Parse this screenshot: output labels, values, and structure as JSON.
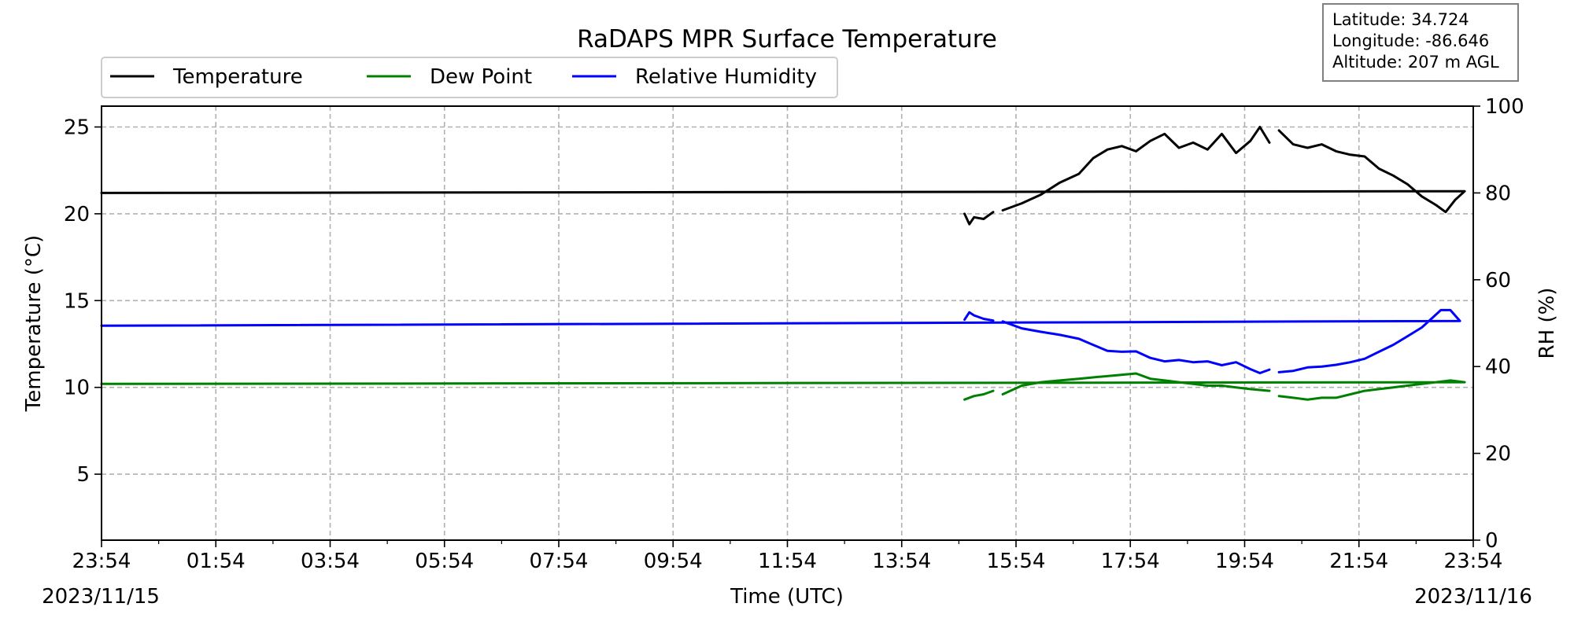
{
  "chart_data": {
    "type": "line",
    "title": "RaDAPS MPR Surface Temperature",
    "xlabel": "Time (UTC)",
    "ylabel_left": "Temperature (°C)",
    "ylabel_right": "RH (%)",
    "x_ticks": [
      "23:54",
      "01:54",
      "03:54",
      "05:54",
      "07:54",
      "09:54",
      "11:54",
      "13:54",
      "15:54",
      "17:54",
      "19:54",
      "21:54",
      "23:54"
    ],
    "start_date": "2023/11/15",
    "end_date": "2023/11/16",
    "y_left_ticks": [
      5,
      10,
      15,
      20,
      25
    ],
    "y_left_range": [
      1.2,
      26.2
    ],
    "y_right_ticks": [
      0,
      20,
      40,
      60,
      80,
      100
    ],
    "y_right_range": [
      0,
      100
    ],
    "grid": true,
    "legend_position": "top-left",
    "info_box": [
      "Latitude: 34.724",
      "Longitude: -86.646",
      "Altitude: 207 m AGL"
    ],
    "series": [
      {
        "name": "Temperature",
        "axis": "left",
        "color": "#000000",
        "segments": [
          [
            [
              "15:00",
              20.0
            ],
            [
              "15:05",
              19.4
            ],
            [
              "15:10",
              19.8
            ],
            [
              "15:20",
              19.7
            ],
            [
              "15:30",
              20.1
            ]
          ],
          [
            [
              "15:40",
              20.2
            ],
            [
              "16:00",
              20.6
            ],
            [
              "16:20",
              21.1
            ],
            [
              "16:40",
              21.8
            ],
            [
              "17:00",
              22.3
            ],
            [
              "17:15",
              23.2
            ],
            [
              "17:30",
              23.7
            ],
            [
              "17:45",
              23.9
            ],
            [
              "18:00",
              23.6
            ],
            [
              "18:15",
              24.2
            ],
            [
              "18:30",
              24.6
            ],
            [
              "18:45",
              23.8
            ],
            [
              "19:00",
              24.1
            ],
            [
              "19:15",
              23.7
            ],
            [
              "19:30",
              24.6
            ],
            [
              "19:45",
              23.5
            ],
            [
              "20:00",
              24.2
            ],
            [
              "20:10",
              25.0
            ],
            [
              "20:20",
              24.1
            ]
          ],
          [
            [
              "20:30",
              24.8
            ],
            [
              "20:45",
              24.0
            ],
            [
              "21:00",
              23.8
            ],
            [
              "21:15",
              24.0
            ],
            [
              "21:30",
              23.6
            ],
            [
              "21:45",
              23.4
            ],
            [
              "22:00",
              23.3
            ],
            [
              "22:15",
              22.6
            ],
            [
              "22:30",
              22.2
            ],
            [
              "22:45",
              21.7
            ],
            [
              "23:00",
              21.0
            ],
            [
              "23:15",
              20.5
            ],
            [
              "23:25",
              20.1
            ],
            [
              "23:35",
              20.8
            ],
            [
              "23:45",
              21.3
            ],
            [
              "23:54",
              21.2
            ]
          ]
        ]
      },
      {
        "name": "Dew Point",
        "axis": "left",
        "color": "#008000",
        "segments": [
          [
            [
              "15:00",
              9.3
            ],
            [
              "15:10",
              9.5
            ],
            [
              "15:20",
              9.6
            ],
            [
              "15:30",
              9.8
            ]
          ],
          [
            [
              "15:40",
              9.6
            ],
            [
              "16:00",
              10.1
            ],
            [
              "16:20",
              10.3
            ],
            [
              "16:40",
              10.4
            ],
            [
              "17:00",
              10.5
            ],
            [
              "17:20",
              10.6
            ],
            [
              "17:40",
              10.7
            ],
            [
              "18:00",
              10.8
            ],
            [
              "18:15",
              10.5
            ],
            [
              "18:30",
              10.4
            ],
            [
              "18:45",
              10.3
            ],
            [
              "19:00",
              10.2
            ],
            [
              "19:15",
              10.1
            ],
            [
              "19:30",
              10.1
            ],
            [
              "19:45",
              10.0
            ],
            [
              "20:00",
              9.9
            ],
            [
              "20:20",
              9.8
            ]
          ],
          [
            [
              "20:30",
              9.5
            ],
            [
              "20:45",
              9.4
            ],
            [
              "21:00",
              9.3
            ],
            [
              "21:15",
              9.4
            ],
            [
              "21:30",
              9.4
            ],
            [
              "21:45",
              9.6
            ],
            [
              "22:00",
              9.8
            ],
            [
              "22:15",
              9.9
            ],
            [
              "22:30",
              10.0
            ],
            [
              "22:45",
              10.1
            ],
            [
              "23:00",
              10.2
            ],
            [
              "23:15",
              10.3
            ],
            [
              "23:30",
              10.4
            ],
            [
              "23:45",
              10.3
            ],
            [
              "23:54",
              10.2
            ]
          ]
        ]
      },
      {
        "name": "Relative Humidity",
        "axis": "right",
        "color": "#0000ff",
        "segments": [
          [
            [
              "15:00",
              50.8
            ],
            [
              "15:05",
              52.5
            ],
            [
              "15:10",
              51.8
            ],
            [
              "15:20",
              51.0
            ],
            [
              "15:30",
              50.6
            ]
          ],
          [
            [
              "15:40",
              50.4
            ],
            [
              "16:00",
              48.8
            ],
            [
              "16:20",
              48.0
            ],
            [
              "16:40",
              47.3
            ],
            [
              "17:00",
              46.4
            ],
            [
              "17:15",
              45.0
            ],
            [
              "17:30",
              43.6
            ],
            [
              "17:45",
              43.4
            ],
            [
              "18:00",
              43.5
            ],
            [
              "18:15",
              42.0
            ],
            [
              "18:30",
              41.2
            ],
            [
              "18:45",
              41.5
            ],
            [
              "19:00",
              41.0
            ],
            [
              "19:15",
              41.2
            ],
            [
              "19:30",
              40.3
            ],
            [
              "19:45",
              41.0
            ],
            [
              "20:00",
              39.4
            ],
            [
              "20:10",
              38.5
            ],
            [
              "20:20",
              39.3
            ]
          ],
          [
            [
              "20:30",
              38.7
            ],
            [
              "20:45",
              39.0
            ],
            [
              "21:00",
              39.8
            ],
            [
              "21:15",
              40.0
            ],
            [
              "21:30",
              40.4
            ],
            [
              "21:45",
              41.0
            ],
            [
              "22:00",
              41.8
            ],
            [
              "22:15",
              43.4
            ],
            [
              "22:30",
              45.0
            ],
            [
              "22:45",
              47.0
            ],
            [
              "23:00",
              49.0
            ],
            [
              "23:10",
              51.0
            ],
            [
              "23:20",
              53.0
            ],
            [
              "23:30",
              53.0
            ],
            [
              "23:40",
              50.5
            ],
            [
              "23:54",
              49.4
            ]
          ]
        ]
      }
    ]
  }
}
